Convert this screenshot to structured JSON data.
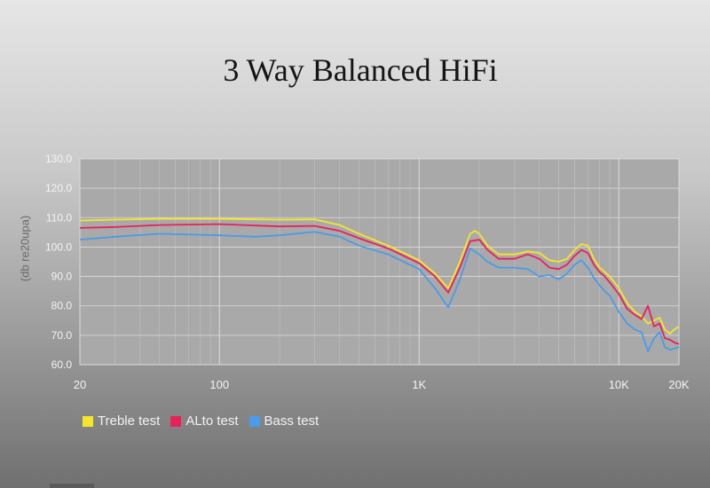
{
  "chart_data": {
    "type": "line",
    "title": "3 Way Balanced HiFi",
    "ylabel": "(db re20upa)",
    "xlabel": "",
    "x_scale": "log",
    "xlim": [
      20,
      20000
    ],
    "ylim": [
      60,
      130
    ],
    "x_ticks": [
      {
        "value": 20,
        "label": "20"
      },
      {
        "value": 100,
        "label": "100"
      },
      {
        "value": 1000,
        "label": "1K"
      },
      {
        "value": 10000,
        "label": "10K"
      },
      {
        "value": 20000,
        "label": "20K"
      }
    ],
    "y_ticks": [
      {
        "value": 60,
        "label": "60.0"
      },
      {
        "value": 70,
        "label": "70.0"
      },
      {
        "value": 80,
        "label": "80.0"
      },
      {
        "value": 90,
        "label": "90.0"
      },
      {
        "value": 100,
        "label": "100.0"
      },
      {
        "value": 110,
        "label": "110.0"
      },
      {
        "value": 120,
        "label": "120.0"
      },
      {
        "value": 130,
        "label": "130.0"
      }
    ],
    "grid": true,
    "legend_position": "bottom-left",
    "series": [
      {
        "name": "Treble test",
        "color": "#f5e62a",
        "points": [
          [
            20,
            109
          ],
          [
            30,
            109.3
          ],
          [
            50,
            109.6
          ],
          [
            100,
            109.6
          ],
          [
            200,
            109.3
          ],
          [
            300,
            109.4
          ],
          [
            400,
            107.5
          ],
          [
            500,
            104.5
          ],
          [
            700,
            100.5
          ],
          [
            1000,
            95.5
          ],
          [
            1200,
            91
          ],
          [
            1400,
            86
          ],
          [
            1600,
            95
          ],
          [
            1800,
            104.5
          ],
          [
            1900,
            105.5
          ],
          [
            2000,
            104.5
          ],
          [
            2200,
            100.5
          ],
          [
            2500,
            97.5
          ],
          [
            3000,
            97.5
          ],
          [
            3500,
            98.5
          ],
          [
            4000,
            98
          ],
          [
            4500,
            95.5
          ],
          [
            5000,
            95
          ],
          [
            5500,
            96
          ],
          [
            6000,
            99
          ],
          [
            6500,
            101
          ],
          [
            7000,
            100.5
          ],
          [
            7500,
            96
          ],
          [
            8000,
            93
          ],
          [
            8500,
            91.5
          ],
          [
            9000,
            90
          ],
          [
            10000,
            86
          ],
          [
            11000,
            81
          ],
          [
            12000,
            78
          ],
          [
            13000,
            76.5
          ],
          [
            14000,
            74
          ],
          [
            15000,
            75
          ],
          [
            16000,
            76
          ],
          [
            17000,
            72
          ],
          [
            18000,
            70.5
          ],
          [
            19000,
            72
          ],
          [
            20000,
            73
          ]
        ]
      },
      {
        "name": "ALto test",
        "color": "#e8215a",
        "points": [
          [
            20,
            106.5
          ],
          [
            30,
            106.8
          ],
          [
            50,
            107.5
          ],
          [
            100,
            107.8
          ],
          [
            200,
            107
          ],
          [
            300,
            107.2
          ],
          [
            400,
            105.5
          ],
          [
            500,
            103
          ],
          [
            700,
            99.5
          ],
          [
            1000,
            94.5
          ],
          [
            1200,
            90
          ],
          [
            1400,
            84.5
          ],
          [
            1600,
            93
          ],
          [
            1800,
            102
          ],
          [
            2000,
            102.5
          ],
          [
            2200,
            99
          ],
          [
            2500,
            96
          ],
          [
            3000,
            96
          ],
          [
            3500,
            97.5
          ],
          [
            4000,
            96
          ],
          [
            4500,
            93
          ],
          [
            5000,
            92.5
          ],
          [
            5500,
            94
          ],
          [
            6000,
            97
          ],
          [
            6500,
            99
          ],
          [
            7000,
            98
          ],
          [
            7500,
            94
          ],
          [
            8000,
            91.5
          ],
          [
            8500,
            90
          ],
          [
            9000,
            88
          ],
          [
            10000,
            84
          ],
          [
            11000,
            79
          ],
          [
            12000,
            77
          ],
          [
            13000,
            75.5
          ],
          [
            14000,
            80
          ],
          [
            15000,
            73
          ],
          [
            16000,
            74
          ],
          [
            17000,
            69
          ],
          [
            18000,
            68.5
          ],
          [
            19000,
            67.5
          ],
          [
            20000,
            67
          ]
        ]
      },
      {
        "name": "Bass test",
        "color": "#4a9be8",
        "points": [
          [
            20,
            102.5
          ],
          [
            30,
            103.5
          ],
          [
            50,
            104.5
          ],
          [
            100,
            104
          ],
          [
            150,
            103.5
          ],
          [
            200,
            104
          ],
          [
            300,
            105.2
          ],
          [
            400,
            103.5
          ],
          [
            500,
            100.5
          ],
          [
            700,
            97.5
          ],
          [
            1000,
            92.5
          ],
          [
            1200,
            86
          ],
          [
            1400,
            79.5
          ],
          [
            1600,
            89
          ],
          [
            1800,
            99.5
          ],
          [
            2000,
            97.5
          ],
          [
            2200,
            95
          ],
          [
            2500,
            93
          ],
          [
            3000,
            93
          ],
          [
            3500,
            92.5
          ],
          [
            4000,
            90
          ],
          [
            4500,
            90.5
          ],
          [
            5000,
            89
          ],
          [
            5500,
            91
          ],
          [
            6000,
            94
          ],
          [
            6500,
            95.5
          ],
          [
            7000,
            93
          ],
          [
            7500,
            89.5
          ],
          [
            8000,
            87
          ],
          [
            8500,
            85
          ],
          [
            9000,
            83.5
          ],
          [
            10000,
            78
          ],
          [
            11000,
            74
          ],
          [
            12000,
            72
          ],
          [
            13000,
            71
          ],
          [
            14000,
            64.5
          ],
          [
            15000,
            69
          ],
          [
            16000,
            71
          ],
          [
            17000,
            66
          ],
          [
            18000,
            65
          ],
          [
            19000,
            65.5
          ],
          [
            20000,
            66
          ]
        ]
      }
    ]
  },
  "colors": {
    "plot_background": "#a9a9a9",
    "grid_major": "#dcdcdc",
    "grid_minor": "#bdbdbd",
    "tick_label": "#f4f4f4"
  }
}
